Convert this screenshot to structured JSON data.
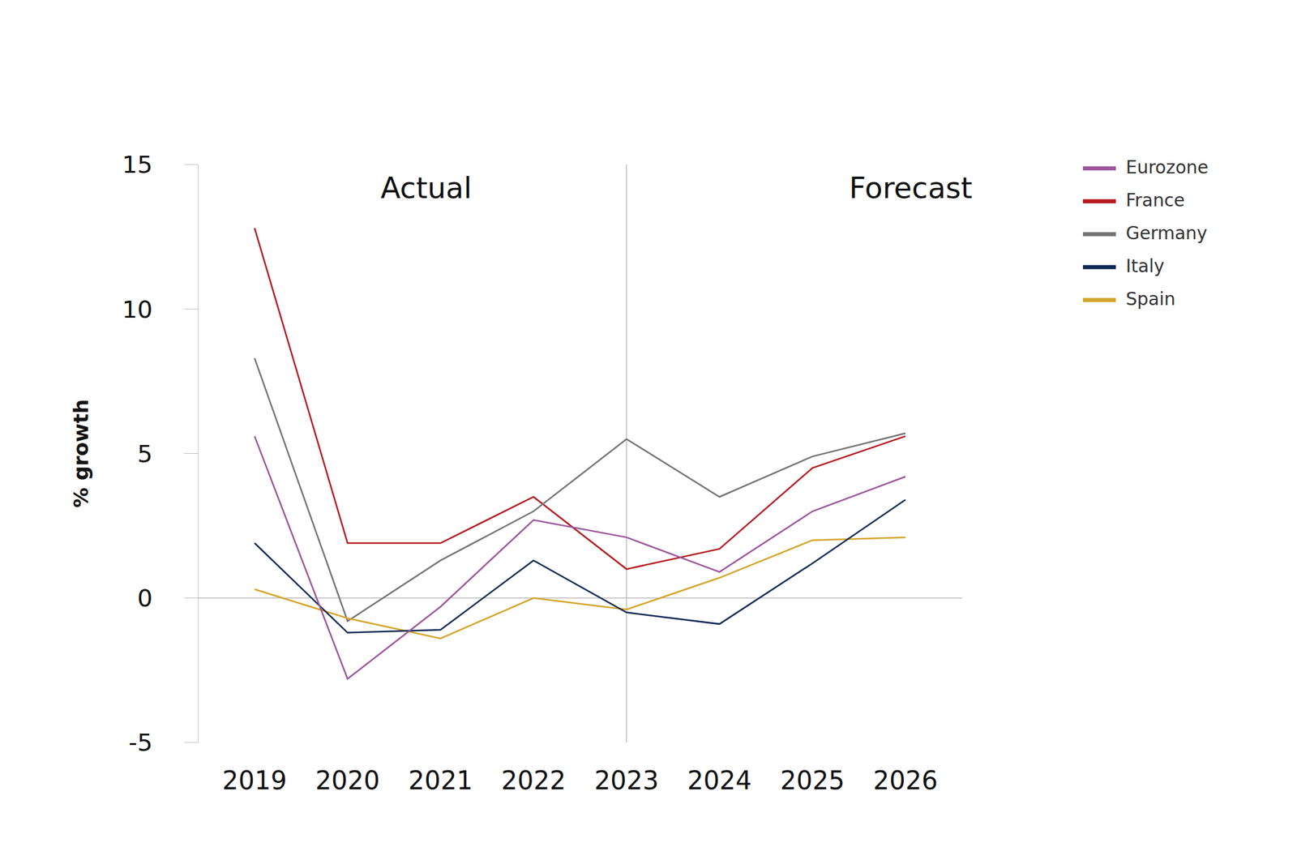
{
  "chart_data": {
    "type": "line",
    "y_label": "% growth",
    "annotations": [
      "Actual",
      "Forecast"
    ],
    "reference_lines": [
      {
        "x": "2023"
      }
    ],
    "categories": [
      "2019",
      "2020",
      "2021",
      "2022",
      "2023",
      "2024",
      "2025",
      "2026"
    ],
    "series": [
      {
        "name": "France",
        "color": "#b5191f",
        "values": [
          12.8,
          1.9,
          1.9,
          3.5,
          1.0,
          1.7,
          4.5,
          5.6
        ]
      },
      {
        "name": "Germany",
        "color": "#747474",
        "values": [
          8.3,
          -0.8,
          1.3,
          3.0,
          5.5,
          3.5,
          4.9,
          5.7
        ]
      },
      {
        "name": "Spain",
        "color": "#d4a42a",
        "values": [
          0.3,
          -0.7,
          -1.4,
          0.0,
          -0.4,
          0.7,
          2.0,
          2.1
        ]
      },
      {
        "name": "Italy",
        "color": "#0f2a55",
        "values": [
          1.9,
          -1.2,
          -1.1,
          1.3,
          -0.5,
          -0.9,
          1.2,
          3.4
        ]
      },
      {
        "name": "Eurozone",
        "color": "#9c559c",
        "values": [
          5.6,
          -2.8,
          -0.3,
          2.7,
          2.1,
          0.9,
          3.0,
          4.2
        ]
      }
    ],
    "ylim": [
      -5,
      15
    ],
    "yticks": [
      -5,
      0,
      5,
      10,
      15
    ],
    "grid": false,
    "legend": "upper right"
  }
}
